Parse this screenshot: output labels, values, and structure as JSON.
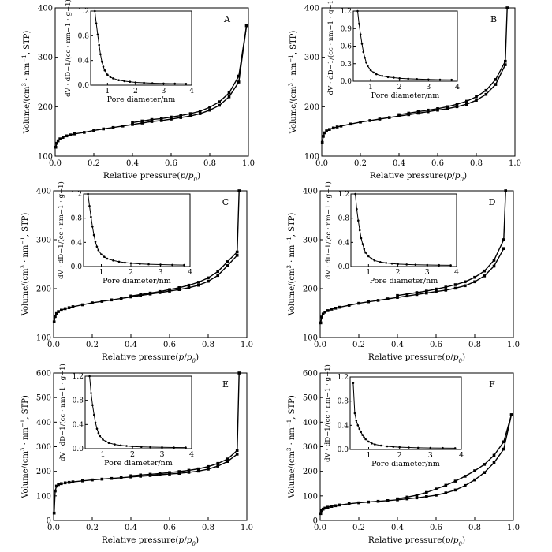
{
  "figure": {
    "background": "#ffffff",
    "line_color": "#000000"
  },
  "chart_data": [
    {
      "type": "line",
      "panel_label": "A",
      "xlabel": "Relative pressure(p/p0)",
      "ylabel": "Volume/(cm3 · nm−1, STP)",
      "xlim": [
        0,
        1.0
      ],
      "ylim": [
        100,
        400
      ],
      "xticks": [
        "0.0",
        "0.2",
        "0.4",
        "0.6",
        "0.8",
        "1.0"
      ],
      "yticks": [
        "100",
        "200",
        "300",
        "400"
      ],
      "series": [
        {
          "x": [
            0.003,
            0.008,
            0.015,
            0.025,
            0.04,
            0.06,
            0.08,
            0.1,
            0.15,
            0.2,
            0.25,
            0.3,
            0.35,
            0.4,
            0.45,
            0.5,
            0.55,
            0.6,
            0.65,
            0.7,
            0.75,
            0.8,
            0.85,
            0.9,
            0.95,
            0.99
          ],
          "values": [
            118,
            126,
            131,
            135,
            138,
            141,
            143,
            145,
            148,
            152,
            155,
            158,
            161,
            164,
            167,
            170,
            172,
            175,
            178,
            181,
            186,
            193,
            203,
            220,
            250,
            364
          ]
        },
        {
          "x": [
            0.99,
            0.95,
            0.9,
            0.85,
            0.8,
            0.75,
            0.7,
            0.65,
            0.6,
            0.55,
            0.5,
            0.45,
            0.4
          ],
          "values": [
            364,
            262,
            228,
            210,
            199,
            191,
            186,
            182,
            179,
            176,
            174,
            171,
            168
          ]
        }
      ],
      "inset": {
        "xlabel": "Pore diameter/nm",
        "ylabel": "dV · dD−1/(cc · nm−1 · g−1)",
        "xlim": [
          0.4,
          4
        ],
        "ylim": [
          0,
          1.2
        ],
        "xticks": [
          "1",
          "2",
          "3",
          "4"
        ],
        "yticks": [
          "0.0",
          "0.4",
          "0.8",
          "1.2"
        ],
        "x": [
          0.55,
          0.6,
          0.65,
          0.7,
          0.75,
          0.8,
          0.85,
          0.9,
          1.0,
          1.1,
          1.2,
          1.4,
          1.6,
          1.8,
          2.0,
          2.3,
          2.6,
          3.0,
          3.4,
          3.8
        ],
        "values": [
          1.2,
          1.0,
          0.82,
          0.65,
          0.5,
          0.38,
          0.3,
          0.24,
          0.17,
          0.13,
          0.11,
          0.08,
          0.065,
          0.055,
          0.045,
          0.038,
          0.032,
          0.027,
          0.024,
          0.022
        ]
      }
    },
    {
      "type": "line",
      "panel_label": "B",
      "xlabel": "Relative pressure(p/p0)",
      "ylabel": "Volume/(cm3 · nm−1, STP)",
      "xlim": [
        0,
        1.0
      ],
      "ylim": [
        100,
        400
      ],
      "xticks": [
        "0.0",
        "0.2",
        "0.4",
        "0.6",
        "0.8",
        "1.0"
      ],
      "yticks": [
        "100",
        "200",
        "300",
        "400"
      ],
      "series": [
        {
          "x": [
            0.003,
            0.008,
            0.015,
            0.025,
            0.04,
            0.06,
            0.08,
            0.1,
            0.15,
            0.2,
            0.25,
            0.3,
            0.35,
            0.4,
            0.45,
            0.5,
            0.55,
            0.6,
            0.65,
            0.7,
            0.75,
            0.8,
            0.85,
            0.9,
            0.95
          ],
          "values": [
            128,
            140,
            147,
            151,
            154,
            157,
            159,
            161,
            165,
            169,
            172,
            175,
            178,
            181,
            184,
            187,
            190,
            193,
            196,
            200,
            205,
            213,
            225,
            245,
            285
          ]
        },
        {
          "x": [
            0.96,
            0.95,
            0.9,
            0.85,
            0.8,
            0.75,
            0.7,
            0.65,
            0.6,
            0.55,
            0.5,
            0.45,
            0.4
          ],
          "values": [
            400,
            292,
            255,
            233,
            220,
            211,
            205,
            200,
            196,
            193,
            190,
            187,
            184
          ]
        }
      ],
      "inset": {
        "xlabel": "Pore diameter/nm",
        "ylabel": "dV · dD−1/(cc · nm−1 · g−1)",
        "xlim": [
          0.4,
          4
        ],
        "ylim": [
          0,
          1.2
        ],
        "xticks": [
          "1",
          "2",
          "3",
          "4"
        ],
        "yticks": [
          "0.0",
          "0.3",
          "0.6",
          "0.9",
          "1.2"
        ],
        "x": [
          0.55,
          0.6,
          0.65,
          0.7,
          0.75,
          0.8,
          0.85,
          0.9,
          1.0,
          1.1,
          1.2,
          1.4,
          1.6,
          1.8,
          2.0,
          2.3,
          2.6,
          3.0,
          3.4,
          3.8
        ],
        "values": [
          1.2,
          0.98,
          0.8,
          0.64,
          0.5,
          0.4,
          0.32,
          0.26,
          0.19,
          0.15,
          0.12,
          0.09,
          0.07,
          0.06,
          0.05,
          0.042,
          0.036,
          0.03,
          0.026,
          0.024
        ]
      }
    },
    {
      "type": "line",
      "panel_label": "C",
      "xlabel": "Relative pressure(p/p0)",
      "ylabel": "Volume/(cm3 · nm−1, STP)",
      "xlim": [
        0,
        1.0
      ],
      "ylim": [
        100,
        400
      ],
      "xticks": [
        "0.0",
        "0.2",
        "0.4",
        "0.6",
        "0.8",
        "1.0"
      ],
      "yticks": [
        "100",
        "200",
        "300",
        "400"
      ],
      "series": [
        {
          "x": [
            0.003,
            0.008,
            0.015,
            0.025,
            0.04,
            0.06,
            0.08,
            0.1,
            0.15,
            0.2,
            0.25,
            0.3,
            0.35,
            0.4,
            0.45,
            0.5,
            0.55,
            0.6,
            0.65,
            0.7,
            0.75,
            0.8,
            0.85,
            0.9,
            0.95
          ],
          "values": [
            132,
            143,
            149,
            153,
            156,
            159,
            161,
            163,
            167,
            171,
            174,
            177,
            180,
            183,
            186,
            189,
            192,
            195,
            198,
            202,
            207,
            215,
            227,
            247,
            268
          ]
        },
        {
          "x": [
            0.96,
            0.95,
            0.9,
            0.85,
            0.8,
            0.75,
            0.7,
            0.65,
            0.6,
            0.55,
            0.5,
            0.45,
            0.4
          ],
          "values": [
            400,
            275,
            255,
            235,
            222,
            213,
            207,
            202,
            198,
            194,
            191,
            188,
            185
          ]
        }
      ],
      "inset": {
        "xlabel": "Pore diameter/nm",
        "ylabel": "dV · dD−1/(cc · nm−1 · g−1)",
        "xlim": [
          0.4,
          4
        ],
        "ylim": [
          0,
          1.2
        ],
        "xticks": [
          "1",
          "2",
          "3",
          "4"
        ],
        "yticks": [
          "0.0",
          "0.4",
          "0.8",
          "1.2"
        ],
        "x": [
          0.55,
          0.6,
          0.65,
          0.7,
          0.75,
          0.8,
          0.85,
          0.9,
          1.0,
          1.1,
          1.2,
          1.4,
          1.6,
          1.8,
          2.0,
          2.3,
          2.6,
          3.0,
          3.4,
          3.8
        ],
        "values": [
          1.2,
          1.0,
          0.82,
          0.66,
          0.52,
          0.41,
          0.33,
          0.27,
          0.2,
          0.16,
          0.13,
          0.1,
          0.08,
          0.065,
          0.055,
          0.045,
          0.038,
          0.032,
          0.028,
          0.025
        ]
      }
    },
    {
      "type": "line",
      "panel_label": "D",
      "xlabel": "Relative pressure(p/p0)",
      "ylabel": "Volume/(cm3 · nm−1, STP)",
      "xlim": [
        0,
        1.0
      ],
      "ylim": [
        100,
        400
      ],
      "xticks": [
        "0.0",
        "0.2",
        "0.4",
        "0.6",
        "0.8",
        "1.0"
      ],
      "yticks": [
        "100",
        "200",
        "300",
        "400"
      ],
      "series": [
        {
          "x": [
            0.003,
            0.008,
            0.015,
            0.025,
            0.04,
            0.06,
            0.08,
            0.1,
            0.15,
            0.2,
            0.25,
            0.3,
            0.35,
            0.4,
            0.45,
            0.5,
            0.55,
            0.6,
            0.65,
            0.7,
            0.75,
            0.8,
            0.85,
            0.9,
            0.95
          ],
          "values": [
            130,
            142,
            148,
            152,
            155,
            158,
            160,
            162,
            166,
            170,
            173,
            176,
            179,
            182,
            185,
            188,
            191,
            194,
            197,
            201,
            206,
            214,
            226,
            246,
            282
          ]
        },
        {
          "x": [
            0.96,
            0.95,
            0.9,
            0.85,
            0.8,
            0.75,
            0.7,
            0.65,
            0.6,
            0.55,
            0.5,
            0.45,
            0.4
          ],
          "values": [
            400,
            300,
            258,
            236,
            223,
            214,
            208,
            203,
            199,
            195,
            192,
            189,
            186
          ]
        }
      ],
      "inset": {
        "xlabel": "Pore diameter/nm",
        "ylabel": "dV · dD−1/(cc · nm−1 · g−1)",
        "xlim": [
          0.4,
          4
        ],
        "ylim": [
          0,
          1.2
        ],
        "xticks": [
          "1",
          "2",
          "3",
          "4"
        ],
        "yticks": [
          "0.0",
          "0.4",
          "0.8",
          "1.2"
        ],
        "x": [
          0.55,
          0.6,
          0.65,
          0.7,
          0.75,
          0.8,
          0.85,
          0.9,
          1.0,
          1.1,
          1.2,
          1.4,
          1.6,
          1.8,
          2.0,
          2.3,
          2.6,
          3.0,
          3.4,
          3.8
        ],
        "values": [
          1.2,
          0.95,
          0.76,
          0.6,
          0.47,
          0.37,
          0.29,
          0.23,
          0.17,
          0.13,
          0.1,
          0.075,
          0.06,
          0.05,
          0.04,
          0.034,
          0.03,
          0.026,
          0.023,
          0.021
        ]
      }
    },
    {
      "type": "line",
      "panel_label": "E",
      "xlabel": "Relative pressure(p/p0)",
      "ylabel": "Volume/(cm3 · nm−1, STP)",
      "xlim": [
        0,
        1.0
      ],
      "ylim": [
        0,
        600
      ],
      "xticks": [
        "0.0",
        "0.2",
        "0.4",
        "0.6",
        "0.8",
        "1.0"
      ],
      "yticks": [
        "0",
        "100",
        "200",
        "300",
        "400",
        "500",
        "600"
      ],
      "series": [
        {
          "x": [
            0.003,
            0.008,
            0.015,
            0.025,
            0.04,
            0.06,
            0.08,
            0.1,
            0.15,
            0.2,
            0.25,
            0.3,
            0.35,
            0.4,
            0.45,
            0.5,
            0.55,
            0.6,
            0.65,
            0.7,
            0.75,
            0.8,
            0.85,
            0.9,
            0.95
          ],
          "values": [
            30,
            120,
            140,
            146,
            150,
            153,
            155,
            157,
            161,
            165,
            168,
            171,
            174,
            177,
            180,
            183,
            186,
            189,
            192,
            196,
            201,
            209,
            221,
            240,
            270
          ]
        },
        {
          "x": [
            0.96,
            0.95,
            0.9,
            0.85,
            0.8,
            0.75,
            0.7,
            0.65,
            0.6,
            0.55,
            0.5,
            0.45,
            0.4
          ],
          "values": [
            600,
            285,
            250,
            232,
            219,
            210,
            204,
            199,
            195,
            191,
            188,
            185,
            182
          ]
        }
      ],
      "inset": {
        "xlabel": "Pore diameter/nm",
        "ylabel": "dV · dD−1/(cc · nm−1 · g−1)",
        "xlim": [
          0.4,
          4
        ],
        "ylim": [
          0,
          1.2
        ],
        "xticks": [
          "1",
          "2",
          "3",
          "4"
        ],
        "yticks": [
          "0.0",
          "0.4",
          "0.8",
          "1.2"
        ],
        "x": [
          0.55,
          0.6,
          0.65,
          0.7,
          0.75,
          0.8,
          0.85,
          0.9,
          1.0,
          1.1,
          1.2,
          1.4,
          1.6,
          1.8,
          2.0,
          2.3,
          2.6,
          3.0,
          3.4,
          3.8
        ],
        "values": [
          1.2,
          0.92,
          0.72,
          0.56,
          0.43,
          0.33,
          0.26,
          0.21,
          0.15,
          0.12,
          0.095,
          0.07,
          0.055,
          0.045,
          0.037,
          0.03,
          0.026,
          0.022,
          0.02,
          0.018
        ]
      }
    },
    {
      "type": "line",
      "panel_label": "F",
      "xlabel": "Relative pressure(p/p0)",
      "ylabel": "Volume/(cm3 · nm−1, STP)",
      "xlim": [
        0,
        1.0
      ],
      "ylim": [
        0,
        600
      ],
      "xticks": [
        "0.0",
        "0.2",
        "0.4",
        "0.6",
        "0.8",
        "1.0"
      ],
      "yticks": [
        "0",
        "100",
        "200",
        "300",
        "400",
        "500",
        "600"
      ],
      "series": [
        {
          "x": [
            0.003,
            0.008,
            0.015,
            0.025,
            0.04,
            0.06,
            0.08,
            0.1,
            0.15,
            0.2,
            0.25,
            0.3,
            0.35,
            0.4,
            0.45,
            0.5,
            0.55,
            0.6,
            0.65,
            0.7,
            0.75,
            0.8,
            0.85,
            0.9,
            0.95,
            0.99
          ],
          "values": [
            28,
            40,
            46,
            50,
            54,
            57,
            60,
            63,
            68,
            72,
            75,
            78,
            81,
            84,
            88,
            92,
            97,
            103,
            112,
            124,
            142,
            165,
            195,
            235,
            290,
            430
          ]
        },
        {
          "x": [
            0.99,
            0.95,
            0.9,
            0.85,
            0.8,
            0.75,
            0.7,
            0.65,
            0.6,
            0.55,
            0.5,
            0.45,
            0.4
          ],
          "values": [
            430,
            320,
            265,
            228,
            202,
            180,
            160,
            143,
            128,
            114,
            103,
            95,
            88
          ]
        }
      ],
      "inset": {
        "xlabel": "Pore diameter/nm",
        "ylabel": "dV · dD−1/(cc · nm−1 · g−1)",
        "xlim": [
          0.4,
          4
        ],
        "ylim": [
          0,
          1.2
        ],
        "xticks": [
          "1",
          "2",
          "3",
          "4"
        ],
        "yticks": [
          "0.0",
          "0.4",
          "0.8",
          "1.2"
        ],
        "x": [
          0.5,
          0.55,
          0.6,
          0.65,
          0.7,
          0.75,
          0.8,
          0.85,
          0.9,
          1.0,
          1.1,
          1.2,
          1.4,
          1.6,
          1.8,
          2.0,
          2.3,
          2.6,
          3.0,
          3.4,
          3.8
        ],
        "values": [
          1.1,
          0.6,
          0.48,
          0.4,
          0.34,
          0.29,
          0.24,
          0.2,
          0.17,
          0.13,
          0.1,
          0.085,
          0.065,
          0.052,
          0.044,
          0.038,
          0.032,
          0.028,
          0.025,
          0.023,
          0.021
        ]
      }
    }
  ]
}
